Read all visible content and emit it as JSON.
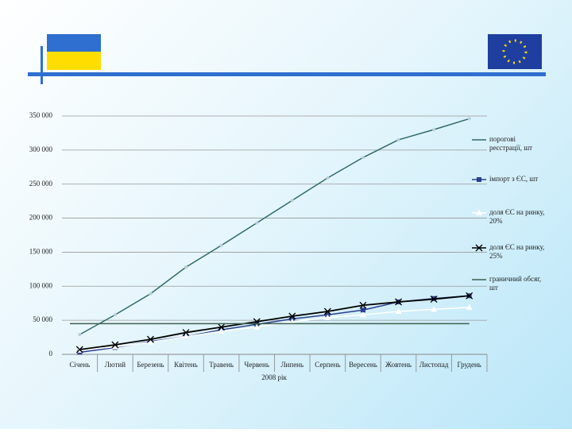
{
  "chart_data": {
    "type": "line",
    "x_label": "2008 рік",
    "categories": [
      "Січень",
      "Лютий",
      "Березень",
      "Квітень",
      "Травень",
      "Червень",
      "Липень",
      "Серпень",
      "Вересень",
      "Жовтень",
      "Листопад",
      "Грудень"
    ],
    "ylim": [
      0,
      350000
    ],
    "yticks": [
      {
        "value": 0,
        "label": "0"
      },
      {
        "value": 50000,
        "label": "50 000"
      },
      {
        "value": 100000,
        "label": "100 000"
      },
      {
        "value": 150000,
        "label": "150 000"
      },
      {
        "value": 200000,
        "label": "200 000"
      },
      {
        "value": 250000,
        "label": "250 000"
      },
      {
        "value": 300000,
        "label": "300 000"
      },
      {
        "value": 350000,
        "label": "350 000"
      }
    ],
    "grid": true,
    "legend": "right",
    "series": [
      {
        "name": "порогові реєстрації, шт",
        "color": "#2f6b6b",
        "marker": "circle",
        "values": [
          29000,
          58000,
          89000,
          128000,
          160000,
          193000,
          226000,
          259000,
          289000,
          315000,
          330000,
          346000
        ]
      },
      {
        "name": "імпорт з ЄС, шт",
        "color": "#2b3f8f",
        "marker": "square",
        "values": [
          3000,
          10000,
          19000,
          26000,
          36000,
          44000,
          52000,
          58000,
          65000,
          77000,
          82000,
          86000
        ]
      },
      {
        "name": "доля ЄС на ринку, 20%",
        "color": "#ffffff",
        "marker": "triangle",
        "values": [
          6000,
          11000,
          18000,
          26000,
          34000,
          40000,
          48000,
          54000,
          58000,
          63000,
          66000,
          69000
        ]
      },
      {
        "name": "доля ЄС на ринку, 25%",
        "color": "#000000",
        "marker": "x",
        "values": [
          7000,
          14000,
          22000,
          32000,
          40000,
          48000,
          56000,
          63000,
          72000,
          77000,
          81000,
          86000
        ]
      },
      {
        "name": "граничний обсяг, шт",
        "color": "#3f5f4f",
        "marker": "none",
        "values": [
          45000,
          45000,
          45000,
          45000,
          45000,
          45000,
          45000,
          45000,
          45000,
          45000,
          45000,
          45000
        ]
      }
    ]
  }
}
